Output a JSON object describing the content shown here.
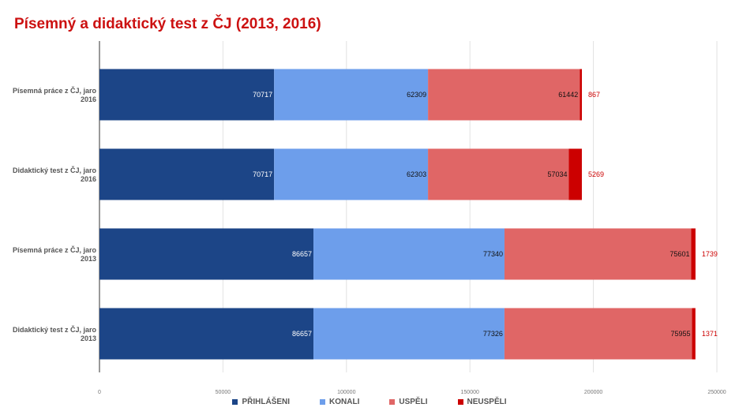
{
  "chart_data": {
    "type": "bar",
    "orientation": "horizontal",
    "stacked": true,
    "title": "Písemný a didaktický test z ČJ (2013, 2016)",
    "categories": [
      [
        "Písemná práce z ČJ, jaro",
        "2016"
      ],
      [
        "Didaktický test z ČJ, jaro",
        "2016"
      ],
      [
        "Písemná práce z ČJ, jaro",
        "2013"
      ],
      [
        "Didaktický test z ČJ, jaro",
        "2013"
      ]
    ],
    "series": [
      {
        "name": "PŘIHLÁŠENI",
        "color": "#1c4587",
        "label_color": "#ffffff",
        "values": [
          70717,
          70717,
          86657,
          86657
        ]
      },
      {
        "name": "KONALI",
        "color": "#6d9eeb",
        "label_color": "#111111",
        "values": [
          62309,
          62303,
          77340,
          77326
        ]
      },
      {
        "name": "USPĚLI",
        "color": "#e06666",
        "label_color": "#111111",
        "values": [
          61442,
          57034,
          75601,
          75955
        ]
      },
      {
        "name": "NEUSPĚLI",
        "color": "#cc0000",
        "label_color": "#cc0000",
        "values": [
          867,
          5269,
          1739,
          1371
        ]
      }
    ],
    "x_ticks": [
      0,
      50000,
      100000,
      150000,
      200000,
      250000
    ],
    "xlim": [
      0,
      250000
    ],
    "grid": true,
    "legend_position": "bottom"
  }
}
